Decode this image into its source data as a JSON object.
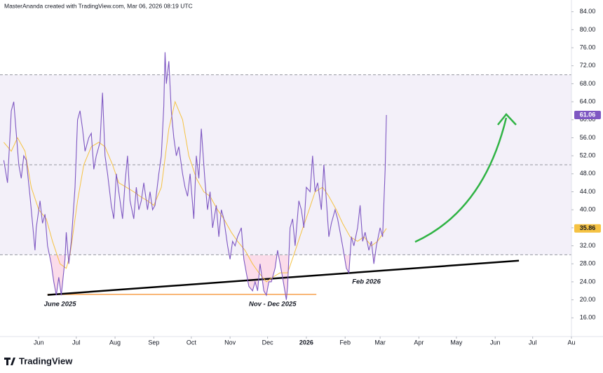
{
  "header": "MasterAnanda created with TradingView.com, Mar 06, 2026 08:19 UTC",
  "footer_logo": "TradingView",
  "chart_data": {
    "type": "line",
    "xlim": [
      -31,
      426
    ],
    "xticks": [
      {
        "value": 0,
        "label": "Jun"
      },
      {
        "value": 30,
        "label": "Jul"
      },
      {
        "value": 61,
        "label": "Aug"
      },
      {
        "value": 92,
        "label": "Sep"
      },
      {
        "value": 122,
        "label": "Oct"
      },
      {
        "value": 153,
        "label": "Nov"
      },
      {
        "value": 183,
        "label": "Dec"
      },
      {
        "value": 214,
        "label": "2026"
      },
      {
        "value": 245,
        "label": "Feb"
      },
      {
        "value": 273,
        "label": "Mar"
      },
      {
        "value": 304,
        "label": "Apr"
      },
      {
        "value": 334,
        "label": "May"
      },
      {
        "value": 365,
        "label": "Jun"
      },
      {
        "value": 395,
        "label": "Jul"
      },
      {
        "value": 426,
        "label": "Au"
      }
    ],
    "ylim": [
      12,
      86.6
    ],
    "yticks": [
      {
        "value": 16,
        "label": "16.00"
      },
      {
        "value": 20,
        "label": "20.00"
      },
      {
        "value": 24,
        "label": "24.00"
      },
      {
        "value": 28,
        "label": "28.00"
      },
      {
        "value": 32,
        "label": "32.00"
      },
      {
        "value": 36,
        "label": "36.00"
      },
      {
        "value": 40,
        "label": "40.00"
      },
      {
        "value": 44,
        "label": "44.00"
      },
      {
        "value": 48,
        "label": "48.00"
      },
      {
        "value": 52,
        "label": "52.00"
      },
      {
        "value": 56,
        "label": "56.00"
      },
      {
        "value": 60,
        "label": "60.00"
      },
      {
        "value": 64,
        "label": "64.00"
      },
      {
        "value": 68,
        "label": "68.00"
      },
      {
        "value": 72,
        "label": "72.00"
      },
      {
        "value": 76,
        "label": "76.00"
      },
      {
        "value": 80,
        "label": "80.00"
      },
      {
        "value": 84,
        "label": "84.00"
      }
    ],
    "levels": {
      "upper": 70,
      "middle": 50,
      "lower": 30,
      "color": "#7e57c2"
    },
    "series": [
      {
        "color": "#7e57c2",
        "x": [
          -28,
          -25,
          -22,
          -20,
          -18,
          -16,
          -14,
          -12,
          -10,
          -7,
          -5,
          -3,
          -2,
          1,
          3,
          5,
          7,
          10,
          12,
          14,
          16,
          18,
          21,
          22,
          24,
          26,
          29,
          31,
          33,
          35,
          37,
          40,
          42,
          44,
          46,
          49,
          51,
          53,
          55,
          58,
          60,
          62,
          64,
          67,
          69,
          71,
          73,
          76,
          78,
          80,
          82,
          84,
          87,
          89,
          91,
          93,
          96,
          98,
          100,
          101,
          102,
          104,
          106,
          108,
          110,
          112,
          115,
          117,
          119,
          121,
          124,
          126,
          128,
          130,
          133,
          135,
          137,
          139,
          142,
          144,
          146,
          148,
          151,
          153,
          155,
          157,
          159,
          162,
          164,
          166,
          168,
          171,
          173,
          175,
          177,
          180,
          182,
          184,
          186,
          189,
          191,
          193,
          195,
          198,
          199,
          201,
          203,
          205,
          208,
          210,
          212,
          214,
          217,
          219,
          221,
          223,
          226,
          228,
          230,
          232,
          234,
          237,
          239,
          241,
          243,
          246,
          248,
          250,
          252,
          255,
          257,
          259,
          261,
          264,
          266,
          268,
          270,
          273,
          275,
          277,
          278
        ],
        "values": [
          51,
          46,
          62,
          64,
          57,
          50,
          47,
          52,
          51,
          43,
          37,
          31,
          36,
          42,
          37,
          39,
          32,
          28,
          24,
          21,
          25,
          21,
          29,
          35,
          28,
          33,
          45,
          60,
          62,
          58,
          53,
          56,
          57,
          49,
          52,
          55,
          66,
          52,
          48,
          41,
          38,
          48,
          44,
          38,
          46,
          52,
          42,
          38,
          45,
          40,
          42,
          46,
          40,
          44,
          40,
          41,
          48,
          52,
          63,
          75,
          68,
          73,
          62,
          56,
          52,
          54,
          48,
          45,
          43,
          48,
          38,
          52,
          47,
          58,
          46,
          40,
          44,
          36,
          41,
          34,
          40,
          38,
          32,
          29,
          33,
          32,
          34,
          36,
          29,
          26,
          23,
          22,
          24,
          22,
          28,
          22,
          21,
          24,
          24,
          27,
          31,
          28,
          25,
          20,
          23,
          36,
          38,
          32,
          42,
          40,
          36,
          45,
          44,
          52,
          44,
          46,
          40,
          50,
          42,
          34,
          37,
          40,
          38,
          35,
          32,
          27,
          26,
          34,
          32,
          36,
          41,
          33,
          35,
          31,
          33,
          28,
          32,
          36,
          34,
          49,
          61.06
        ]
      },
      {
        "color": "#f5c242",
        "x": [
          -28,
          -22,
          -17,
          -11,
          -6,
          0,
          6,
          11,
          17,
          22,
          25,
          31,
          36,
          42,
          48,
          53,
          59,
          64,
          70,
          76,
          81,
          87,
          92,
          98,
          104,
          109,
          115,
          120,
          126,
          132,
          137,
          143,
          148,
          154,
          159,
          165,
          171,
          176,
          182,
          187,
          193,
          199,
          204,
          210,
          215,
          221,
          227,
          232,
          238,
          243,
          249,
          255,
          260,
          266,
          271,
          278
        ],
        "values": [
          55,
          53,
          56,
          53,
          45,
          40,
          38,
          33,
          28,
          27,
          30,
          42,
          50,
          54,
          55,
          54,
          50,
          46,
          45,
          44,
          43,
          42,
          41,
          45,
          58,
          64,
          60,
          52,
          47,
          44,
          43,
          40,
          38,
          35,
          33,
          31,
          28,
          26,
          24,
          25,
          26,
          26,
          30,
          35,
          39,
          44,
          45,
          43,
          40,
          37,
          34,
          33,
          34,
          32,
          33,
          35.86
        ]
      }
    ],
    "trendline": {
      "color": "#000000",
      "x": [
        7,
        384
      ],
      "values": [
        21.1,
        28.7
      ]
    },
    "support": {
      "color": "#f7a14c",
      "x": [
        7,
        222
      ],
      "values": [
        21.2,
        21.2
      ]
    },
    "annotations": [
      {
        "text": "June 2025",
        "x": 17,
        "y": 19
      },
      {
        "text": "Nov - Dec 2025",
        "x": 187,
        "y": 19
      },
      {
        "text": "Feb 2026",
        "x": 262,
        "y": 24
      }
    ]
  }
}
